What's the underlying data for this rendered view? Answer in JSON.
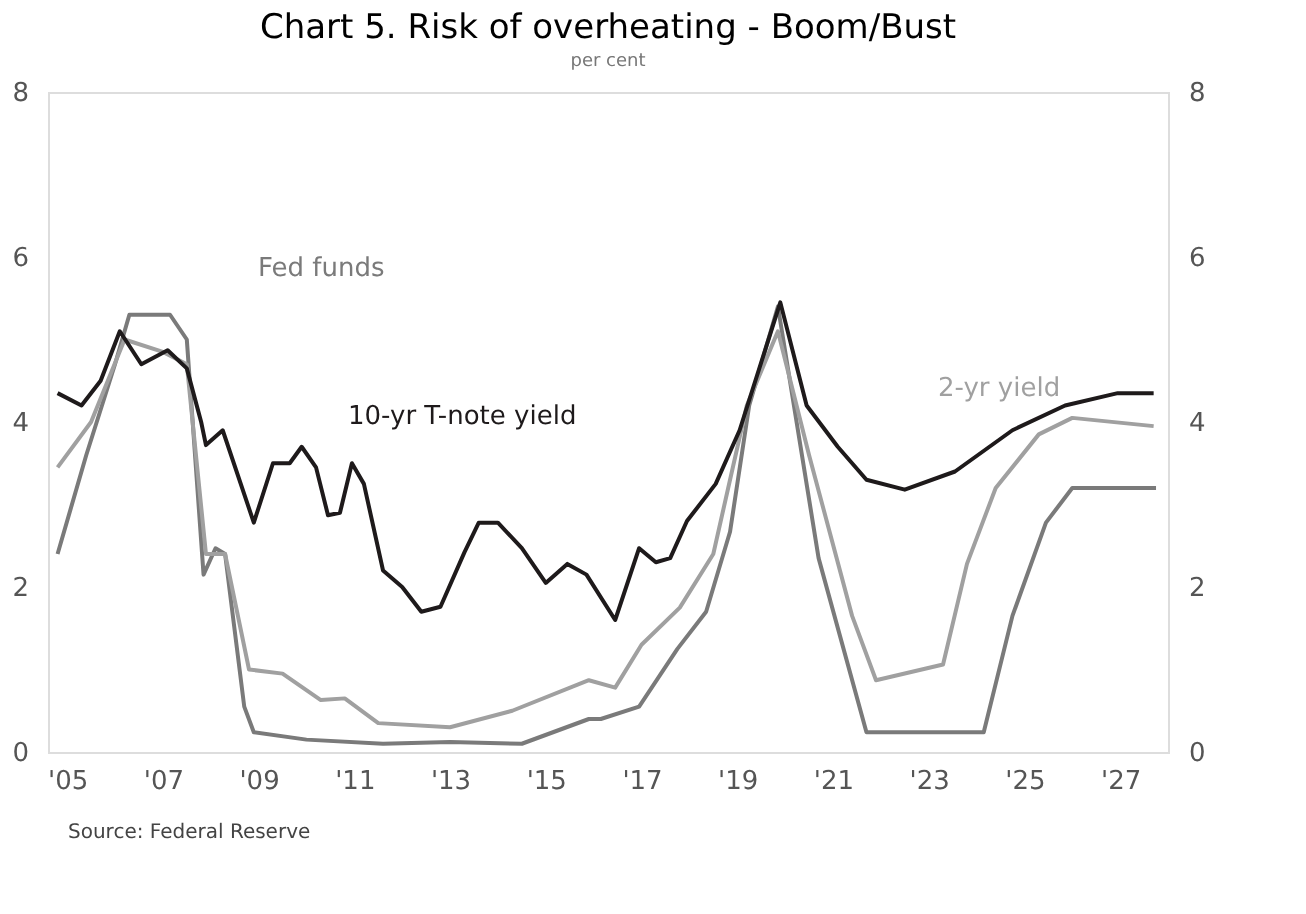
{
  "chart_data": {
    "type": "line",
    "title": "Chart 5. Risk of overheating - Boom/Bust",
    "subtitle": "per cent",
    "annotations": [
      "Source: Federal Reserve"
    ],
    "xlim": [
      2004.6,
      2028
    ],
    "xticks": [
      {
        "value": 2005,
        "label": "'05"
      },
      {
        "value": 2007,
        "label": "'07"
      },
      {
        "value": 2009,
        "label": "'09"
      },
      {
        "value": 2011,
        "label": "'11"
      },
      {
        "value": 2013,
        "label": "'13"
      },
      {
        "value": 2015,
        "label": "'15"
      },
      {
        "value": 2017,
        "label": "'17"
      },
      {
        "value": 2019,
        "label": "'19"
      },
      {
        "value": 2021,
        "label": "'21"
      },
      {
        "value": 2023,
        "label": "'23"
      },
      {
        "value": 2025,
        "label": "'25"
      },
      {
        "value": 2027,
        "label": "'27"
      }
    ],
    "ylim": [
      0,
      8
    ],
    "yticks": [
      0,
      2,
      4,
      6,
      8
    ],
    "y2lim": [
      0,
      8
    ],
    "y2ticks": [
      0,
      2,
      4,
      6,
      8
    ],
    "grid": false,
    "legend": false,
    "marker": "none",
    "line_style": "solid",
    "series": [
      {
        "name": "Fed funds",
        "color": "#7a7a7a",
        "x": [
          2004.8,
          2005.4,
          2006.0,
          2006.3,
          2007.15,
          2007.5,
          2007.85,
          2008.1,
          2008.3,
          2008.7,
          2008.9,
          2010.0,
          2011.6,
          2013.0,
          2014.5,
          2015.9,
          2016.15,
          2016.95,
          2017.75,
          2018.35,
          2018.85,
          2019.25,
          2019.85,
          2020.7,
          2021.7,
          2024.15,
          2024.75,
          2025.45,
          2026.0,
          2027.75
        ],
        "values": [
          2.4,
          3.6,
          4.7,
          5.3,
          5.3,
          5.0,
          2.15,
          2.47,
          2.4,
          0.55,
          0.24,
          0.15,
          0.1,
          0.12,
          0.1,
          0.4,
          0.4,
          0.55,
          1.25,
          1.7,
          2.67,
          4.2,
          5.4,
          2.35,
          0.24,
          0.24,
          1.65,
          2.78,
          3.2,
          3.2
        ]
      },
      {
        "name": "2-yr yield",
        "color": "#a0a0a0",
        "x": [
          2004.8,
          2005.5,
          2006.2,
          2007.0,
          2007.5,
          2007.9,
          2008.3,
          2008.8,
          2009.5,
          2010.3,
          2010.8,
          2011.5,
          2013.0,
          2014.3,
          2015.9,
          2016.45,
          2017.0,
          2017.8,
          2018.5,
          2019.2,
          2019.85,
          2020.5,
          2021.4,
          2021.9,
          2023.3,
          2023.8,
          2024.4,
          2025.3,
          2026.0,
          2027.7
        ],
        "values": [
          3.45,
          4.0,
          5.0,
          4.85,
          4.7,
          2.4,
          2.4,
          1.0,
          0.95,
          0.63,
          0.65,
          0.35,
          0.3,
          0.5,
          0.87,
          0.78,
          1.3,
          1.75,
          2.4,
          4.2,
          5.1,
          3.6,
          1.65,
          0.87,
          1.06,
          2.28,
          3.2,
          3.85,
          4.05,
          3.95
        ]
      },
      {
        "name": "10-yr T-note yield",
        "color": "#1e1a1b",
        "x": [
          2004.8,
          2005.3,
          2005.7,
          2006.1,
          2006.55,
          2007.1,
          2007.5,
          2007.8,
          2007.9,
          2008.25,
          2008.9,
          2009.3,
          2009.65,
          2009.9,
          2010.2,
          2010.45,
          2010.7,
          2010.95,
          2011.2,
          2011.6,
          2012.0,
          2012.4,
          2012.8,
          2013.3,
          2013.6,
          2014.0,
          2014.5,
          2015.0,
          2015.45,
          2015.85,
          2016.45,
          2016.95,
          2017.3,
          2017.6,
          2017.95,
          2018.55,
          2019.05,
          2019.9,
          2020.45,
          2021.1,
          2021.7,
          2022.5,
          2023.55,
          2024.75,
          2025.85,
          2026.95,
          2027.7
        ],
        "values": [
          4.35,
          4.2,
          4.5,
          5.1,
          4.7,
          4.87,
          4.65,
          4.0,
          3.72,
          3.9,
          2.78,
          3.5,
          3.5,
          3.7,
          3.45,
          2.87,
          2.9,
          3.5,
          3.25,
          2.2,
          2.0,
          1.7,
          1.76,
          2.42,
          2.78,
          2.78,
          2.47,
          2.05,
          2.28,
          2.15,
          1.6,
          2.47,
          2.3,
          2.35,
          2.8,
          3.25,
          3.9,
          5.45,
          4.2,
          3.7,
          3.3,
          3.18,
          3.4,
          3.9,
          4.2,
          4.35,
          4.35
        ]
      }
    ]
  }
}
